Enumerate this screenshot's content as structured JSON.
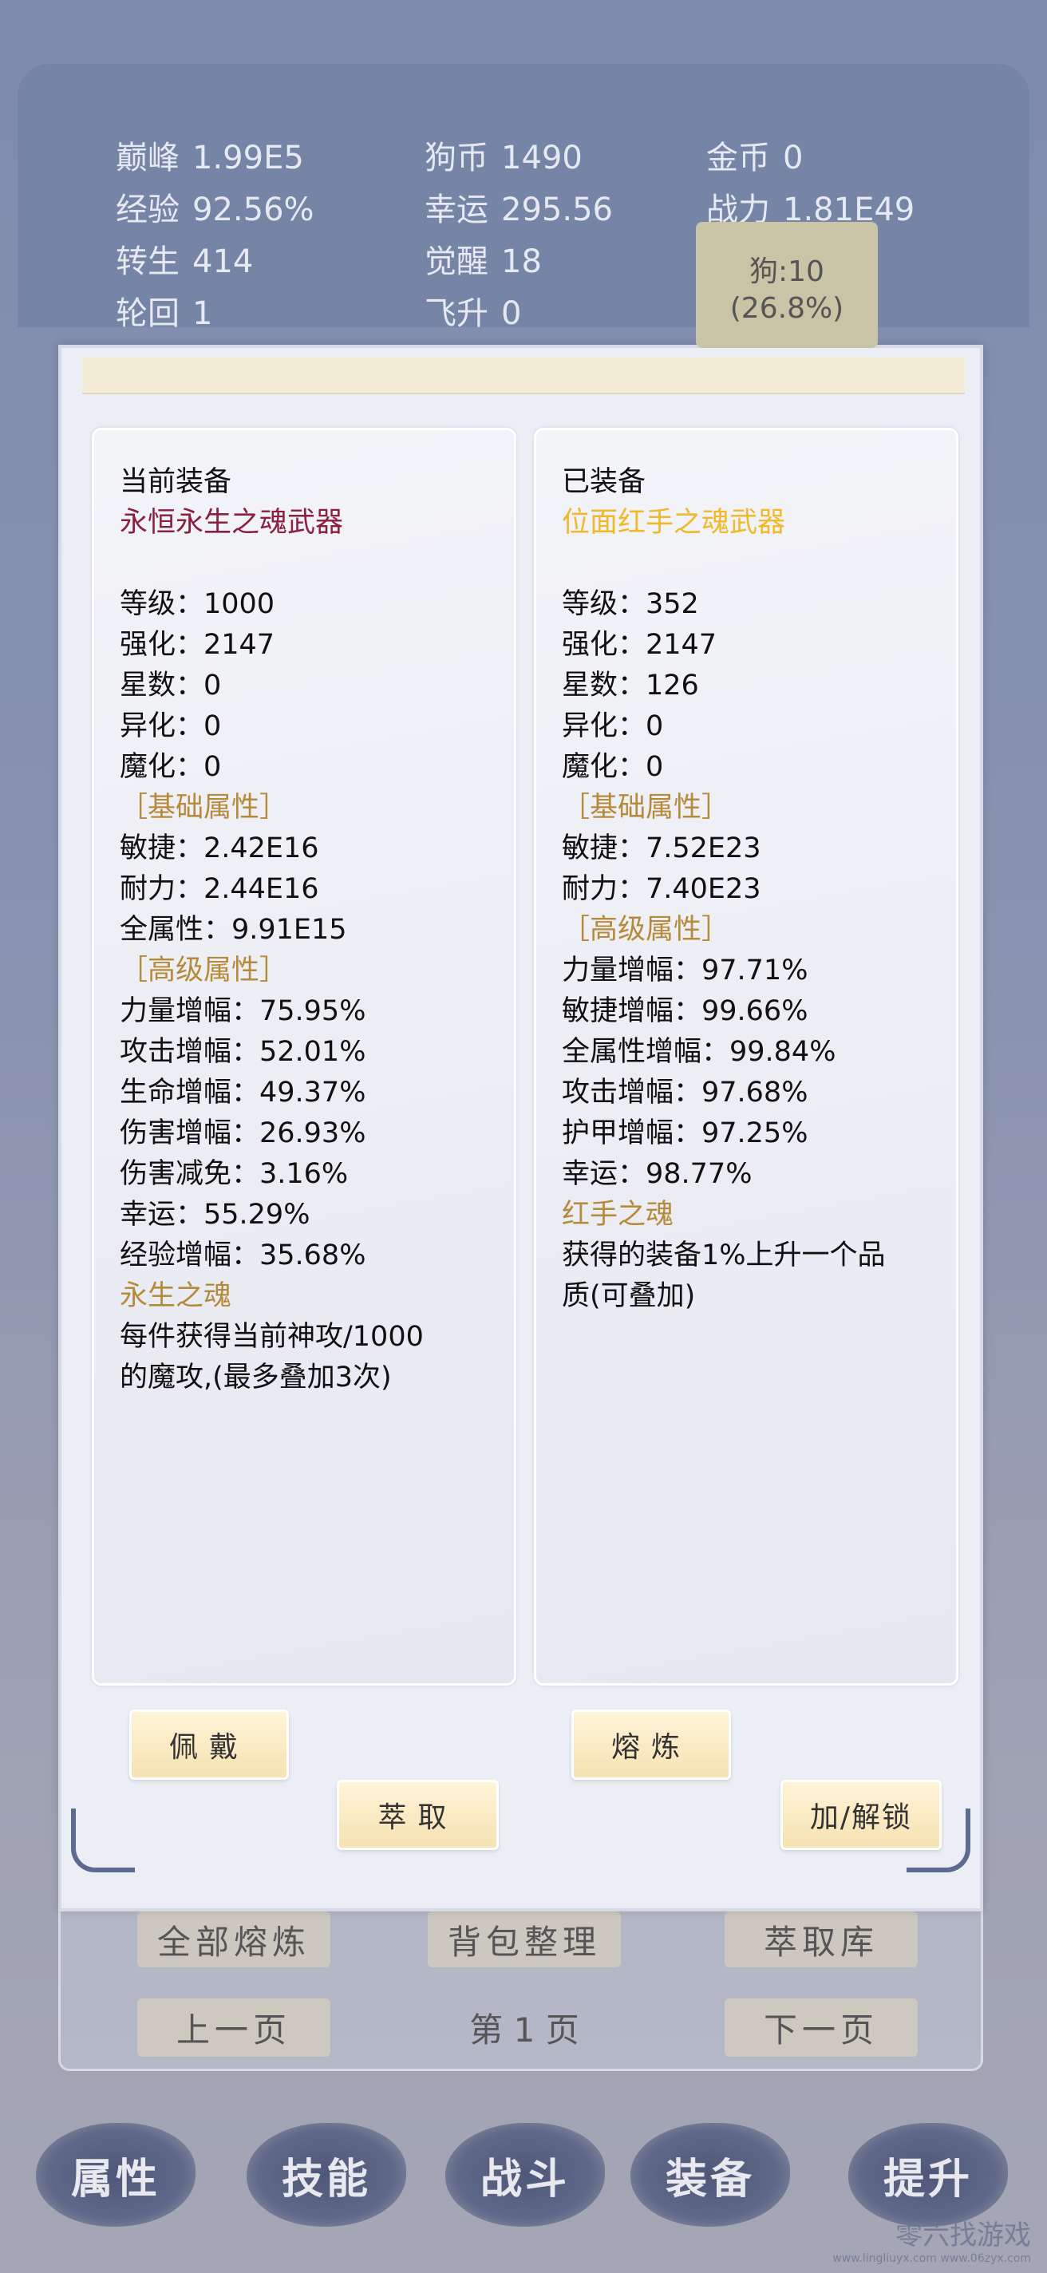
{
  "stats": [
    {
      "k": "巅峰",
      "v": "1.99E5"
    },
    {
      "k": "狗币",
      "v": "1490"
    },
    {
      "k": "金币",
      "v": "0"
    },
    {
      "k": "经验",
      "v": "92.56%"
    },
    {
      "k": "幸运",
      "v": "295.56"
    },
    {
      "k": "战力",
      "v": "1.81E49"
    },
    {
      "k": "转生",
      "v": "414"
    },
    {
      "k": "觉醒",
      "v": "18"
    },
    {
      "k": "轮回",
      "v": "1"
    },
    {
      "k": "飞升",
      "v": "0"
    }
  ],
  "dog": {
    "line1": "狗:10",
    "line2": "(26.8%)"
  },
  "colors": {
    "current_item": "#8a1f3f",
    "equipped_item": "#f0b92a",
    "section": "#b58a3a"
  },
  "current": {
    "lines": [
      {
        "t": "当前装备",
        "type": "heading"
      },
      {
        "t": "永恒永生之魂武器",
        "type": "item"
      },
      {
        "t": "",
        "type": "blank"
      },
      {
        "t": "等级：1000"
      },
      {
        "t": "强化：2147"
      },
      {
        "t": "星数：0"
      },
      {
        "t": "异化：0"
      },
      {
        "t": "魔化：0"
      },
      {
        "t": "［基础属性］",
        "type": "section"
      },
      {
        "t": "敏捷：2.42E16"
      },
      {
        "t": "耐力：2.44E16"
      },
      {
        "t": "全属性：9.91E15"
      },
      {
        "t": "［高级属性］",
        "type": "section"
      },
      {
        "t": "力量增幅：75.95%"
      },
      {
        "t": "攻击增幅：52.01%"
      },
      {
        "t": "生命增幅：49.37%"
      },
      {
        "t": "伤害增幅：26.93%"
      },
      {
        "t": "伤害减免：3.16%"
      },
      {
        "t": "幸运：55.29%"
      },
      {
        "t": "经验增幅：35.68%"
      },
      {
        "t": "永生之魂",
        "type": "section"
      },
      {
        "t": "每件获得当前神攻/1000"
      },
      {
        "t": "的魔攻,(最多叠加3次)"
      }
    ]
  },
  "equipped": {
    "lines": [
      {
        "t": "已装备",
        "type": "heading"
      },
      {
        "t": "位面红手之魂武器",
        "type": "item"
      },
      {
        "t": "",
        "type": "blank"
      },
      {
        "t": "等级：352"
      },
      {
        "t": "强化：2147"
      },
      {
        "t": "星数：126"
      },
      {
        "t": "异化：0"
      },
      {
        "t": "魔化：0"
      },
      {
        "t": "［基础属性］",
        "type": "section"
      },
      {
        "t": "敏捷：7.52E23"
      },
      {
        "t": "耐力：7.40E23"
      },
      {
        "t": "［高级属性］",
        "type": "section"
      },
      {
        "t": "力量增幅：97.71%"
      },
      {
        "t": "敏捷增幅：99.66%"
      },
      {
        "t": "全属性增幅：99.84%"
      },
      {
        "t": "攻击增幅：97.68%"
      },
      {
        "t": "护甲增幅：97.25%"
      },
      {
        "t": "幸运：98.77%"
      },
      {
        "t": "红手之魂",
        "type": "section"
      },
      {
        "t": "获得的装备1%上升一个品"
      },
      {
        "t": "质(可叠加)"
      }
    ]
  },
  "buttons": {
    "wear": "佩戴",
    "smelt": "熔炼",
    "extract": "萃取",
    "lock": "加/解锁"
  },
  "bag": {
    "smelt_all": "全部熔炼",
    "sort": "背包整理",
    "extract_lib": "萃取库",
    "prev": "上一页",
    "page": "第 1 页",
    "next": "下一页"
  },
  "nav": [
    "属性",
    "技能",
    "战斗",
    "装备",
    "提升"
  ],
  "watermark": {
    "name": "零六找游戏",
    "url": "www.lingliuyx.com  www.06zyx.com"
  }
}
